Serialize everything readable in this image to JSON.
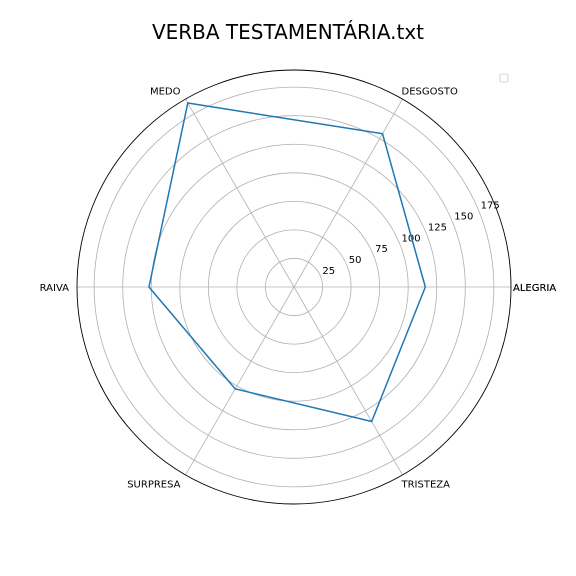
{
  "chart_data": {
    "type": "radar",
    "title": "VERBA TESTAMENTÁRIA.txt",
    "categories": [
      "ALEGRIA",
      "DESGOSTO",
      "MEDO",
      "RAIVA",
      "SURPRESA",
      "TRISTEZA"
    ],
    "closing_category_label": "ALEGRIA",
    "radial_ticks": [
      25,
      50,
      75,
      100,
      125,
      150,
      175
    ],
    "rlim": [
      0,
      190
    ],
    "grid": true,
    "legend": "top-right",
    "series": [
      {
        "values": [
          115,
          155,
          186,
          127,
          103,
          136
        ]
      }
    ],
    "colors": {
      "series": "#1f77b4",
      "grid": "#b0b0b0",
      "frame": "#000000"
    }
  }
}
